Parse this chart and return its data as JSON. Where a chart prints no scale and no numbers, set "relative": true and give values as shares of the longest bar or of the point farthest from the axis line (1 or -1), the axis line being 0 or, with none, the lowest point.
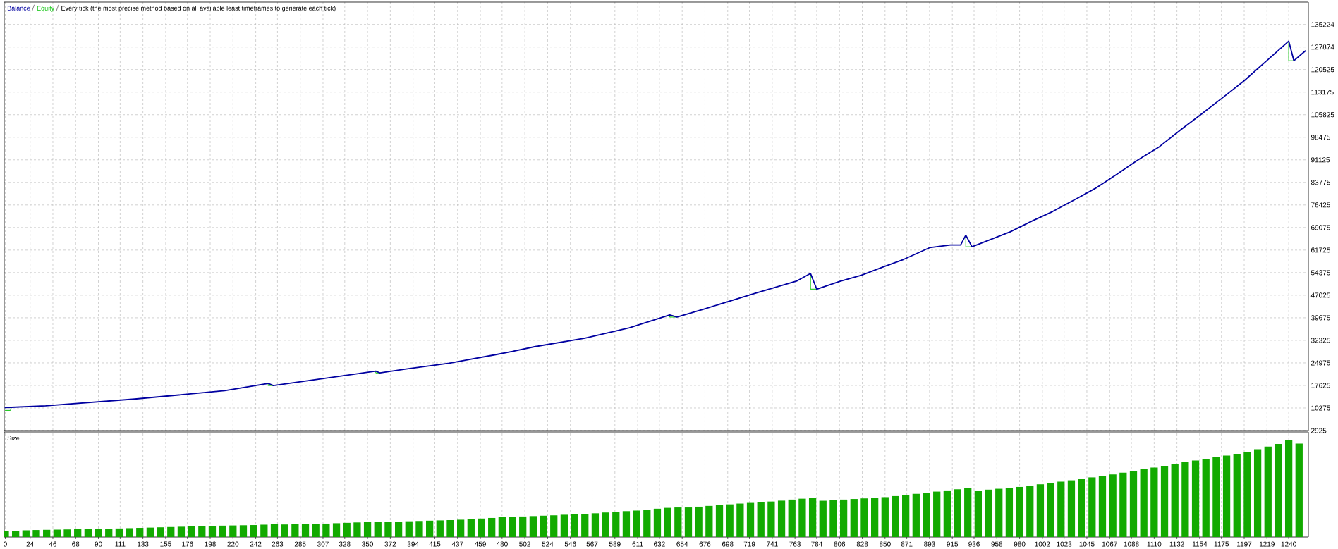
{
  "chart_data": [
    {
      "type": "line",
      "title": "Every tick (the most precise method based on all available least timeframes to generate each tick)",
      "series": [
        {
          "name": "Balance",
          "color": "#0000a0",
          "x": [
            0,
            6,
            39,
            125,
            212,
            254,
            259,
            299,
            358,
            362,
            386,
            429,
            473,
            490,
            512,
            560,
            603,
            642,
            649,
            675,
            724,
            765,
            778,
            784,
            806,
            827,
            848,
            868,
            893,
            913,
            923,
            928,
            934,
            971,
            992,
            1012,
            1033,
            1053,
            1074,
            1094,
            1115,
            1136,
            1156,
            1177,
            1197,
            1218,
            1240,
            1245,
            1256
          ],
          "values": [
            10400,
            10500,
            11000,
            13200,
            15900,
            18300,
            17600,
            19500,
            22300,
            21700,
            22900,
            24900,
            27600,
            28700,
            30300,
            33000,
            36400,
            40600,
            39900,
            42500,
            47600,
            51700,
            54100,
            49000,
            51500,
            53500,
            56200,
            58700,
            62500,
            63400,
            63400,
            66600,
            62800,
            67700,
            71200,
            74300,
            78100,
            81800,
            86400,
            91000,
            95400,
            101000,
            106100,
            111600,
            116900,
            123200,
            129800,
            123400,
            126600
          ]
        },
        {
          "name": "Equity",
          "color": "#00c000",
          "x": [
            0,
            5,
            6,
            7,
            254,
            254,
            259,
            260,
            358,
            358,
            362,
            363,
            642,
            642,
            649,
            650,
            778,
            778,
            784,
            785,
            928,
            928,
            934,
            935,
            1240,
            1240,
            1245
          ],
          "values": [
            9500,
            9500,
            10500,
            null,
            18300,
            17600,
            17600,
            null,
            22300,
            21700,
            21700,
            null,
            40600,
            39900,
            39900,
            null,
            54100,
            49000,
            49000,
            null,
            66600,
            62800,
            62800,
            null,
            129800,
            123400,
            123400
          ]
        }
      ],
      "xlim": [
        -1,
        1259
      ],
      "xticks": [
        0,
        24,
        46,
        68,
        90,
        111,
        133,
        155,
        176,
        198,
        220,
        242,
        263,
        285,
        307,
        328,
        350,
        372,
        394,
        415,
        437,
        459,
        480,
        502,
        524,
        546,
        567,
        589,
        611,
        632,
        654,
        676,
        698,
        719,
        741,
        763,
        784,
        806,
        828,
        850,
        871,
        893,
        915,
        936,
        958,
        980,
        1002,
        1023,
        1045,
        1067,
        1088,
        1110,
        1132,
        1154,
        1175,
        1197,
        1219,
        1240
      ],
      "ylim": [
        2925,
        142500
      ],
      "yticks": [
        2925,
        10275,
        17625,
        24975,
        32325,
        39675,
        47025,
        54375,
        61725,
        69075,
        76425,
        83775,
        91125,
        98475,
        105825,
        113175,
        120525,
        127874,
        135224
      ],
      "grid": true,
      "legend": "top left",
      "tick_labels": "y"
    },
    {
      "type": "bar",
      "title": "Size",
      "relative": true,
      "color": "#12aa00",
      "x": [
        0,
        10,
        20,
        30,
        40,
        50,
        60,
        70,
        80,
        90,
        100,
        110,
        120,
        130,
        140,
        150,
        160,
        170,
        180,
        190,
        200,
        210,
        220,
        230,
        240,
        250,
        260,
        270,
        280,
        290,
        300,
        310,
        320,
        330,
        340,
        350,
        360,
        370,
        380,
        390,
        400,
        410,
        420,
        430,
        440,
        450,
        460,
        470,
        480,
        490,
        500,
        510,
        520,
        530,
        540,
        550,
        560,
        570,
        580,
        590,
        600,
        610,
        620,
        630,
        640,
        650,
        660,
        670,
        680,
        690,
        700,
        710,
        720,
        730,
        740,
        750,
        760,
        770,
        780,
        790,
        800,
        810,
        820,
        830,
        840,
        850,
        860,
        870,
        880,
        890,
        900,
        910,
        920,
        930,
        940,
        950,
        960,
        970,
        980,
        990,
        1000,
        1010,
        1020,
        1030,
        1040,
        1050,
        1060,
        1070,
        1080,
        1090,
        1100,
        1110,
        1120,
        1130,
        1140,
        1150,
        1160,
        1170,
        1180,
        1190,
        1200,
        1210,
        1220,
        1230,
        1240,
        1250
      ],
      "values": [
        0.062,
        0.065,
        0.069,
        0.072,
        0.074,
        0.076,
        0.078,
        0.08,
        0.081,
        0.084,
        0.086,
        0.088,
        0.091,
        0.094,
        0.097,
        0.1,
        0.103,
        0.106,
        0.109,
        0.112,
        0.115,
        0.117,
        0.119,
        0.121,
        0.123,
        0.127,
        0.131,
        0.129,
        0.131,
        0.133,
        0.135,
        0.138,
        0.142,
        0.146,
        0.15,
        0.154,
        0.157,
        0.155,
        0.158,
        0.162,
        0.165,
        0.168,
        0.171,
        0.174,
        0.178,
        0.184,
        0.19,
        0.196,
        0.203,
        0.207,
        0.211,
        0.215,
        0.219,
        0.223,
        0.229,
        0.233,
        0.239,
        0.244,
        0.252,
        0.259,
        0.266,
        0.272,
        0.282,
        0.291,
        0.3,
        0.304,
        0.304,
        0.312,
        0.32,
        0.328,
        0.336,
        0.344,
        0.351,
        0.358,
        0.365,
        0.374,
        0.385,
        0.394,
        0.404,
        0.373,
        0.379,
        0.385,
        0.391,
        0.397,
        0.404,
        0.41,
        0.421,
        0.432,
        0.444,
        0.455,
        0.467,
        0.479,
        0.491,
        0.503,
        0.478,
        0.487,
        0.496,
        0.506,
        0.515,
        0.529,
        0.542,
        0.556,
        0.569,
        0.583,
        0.598,
        0.613,
        0.628,
        0.644,
        0.661,
        0.678,
        0.696,
        0.714,
        0.732,
        0.75,
        0.768,
        0.786,
        0.804,
        0.821,
        0.838,
        0.856,
        0.876,
        0.903,
        0.929,
        0.956,
        1.0,
        0.96
      ],
      "xlim": [
        -1,
        1259
      ],
      "xticks": [
        0,
        24,
        46,
        68,
        90,
        111,
        133,
        155,
        176,
        198,
        220,
        242,
        263,
        285,
        307,
        328,
        350,
        372,
        394,
        415,
        437,
        459,
        480,
        502,
        524,
        546,
        567,
        589,
        611,
        632,
        654,
        676,
        698,
        719,
        741,
        763,
        784,
        806,
        828,
        850,
        871,
        893,
        915,
        936,
        958,
        980,
        1002,
        1023,
        1045,
        1067,
        1088,
        1110,
        1132,
        1154,
        1175,
        1197,
        1219,
        1240
      ],
      "grid": "x",
      "tick_labels": "x"
    }
  ]
}
